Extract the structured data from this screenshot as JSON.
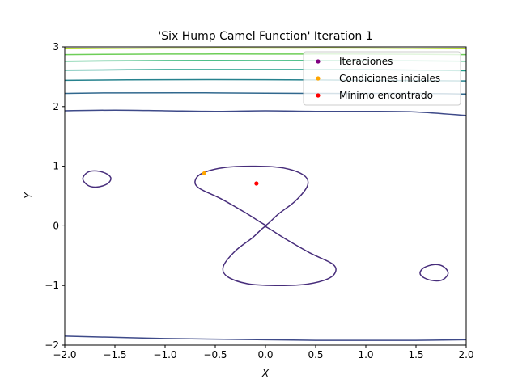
{
  "chart_data": {
    "type": "contour",
    "title": "'Six Hump Camel Function' Iteration 1",
    "xlabel": "X",
    "ylabel": "Y",
    "xlim": [
      -2,
      2
    ],
    "ylim": [
      -2,
      3
    ],
    "xticks": [
      -2.0,
      -1.5,
      -1.0,
      -0.5,
      0.0,
      0.5,
      1.0,
      1.5,
      2.0
    ],
    "yticks": [
      -2,
      -1,
      0,
      1,
      2,
      3
    ],
    "xtick_labels": [
      "−2.0",
      "−1.5",
      "−1.0",
      "−0.5",
      "0.0",
      "0.5",
      "1.0",
      "1.5",
      "2.0"
    ],
    "ytick_labels": [
      "−2",
      "−1",
      "0",
      "1",
      "2",
      "3"
    ],
    "grid": false,
    "legend_position": "top-right",
    "contour_colors": [
      "#472d7b",
      "#3e4a89",
      "#31688e",
      "#26828e",
      "#1f9e89",
      "#35b779",
      "#6ece58",
      "#b5de2b",
      "#fde725"
    ],
    "contours": {
      "figure_eight_upper": [
        [
          -0.02,
          0.03
        ],
        [
          -0.2,
          0.22
        ],
        [
          -0.45,
          0.46
        ],
        [
          -0.66,
          0.63
        ],
        [
          -0.7,
          0.76
        ],
        [
          -0.62,
          0.89
        ],
        [
          -0.4,
          0.98
        ],
        [
          -0.1,
          1.0
        ],
        [
          0.18,
          0.97
        ],
        [
          0.38,
          0.85
        ],
        [
          0.42,
          0.68
        ],
        [
          0.3,
          0.42
        ],
        [
          0.13,
          0.2
        ],
        [
          0.02,
          0.03
        ]
      ],
      "figure_eight_lower": [
        [
          -0.02,
          -0.03
        ],
        [
          -0.13,
          -0.2
        ],
        [
          -0.3,
          -0.42
        ],
        [
          -0.42,
          -0.68
        ],
        [
          -0.38,
          -0.85
        ],
        [
          -0.18,
          -0.97
        ],
        [
          0.1,
          -1.0
        ],
        [
          0.4,
          -0.98
        ],
        [
          0.62,
          -0.89
        ],
        [
          0.7,
          -0.76
        ],
        [
          0.66,
          -0.63
        ],
        [
          0.45,
          -0.46
        ],
        [
          0.2,
          -0.22
        ],
        [
          0.02,
          -0.03
        ]
      ],
      "left_lobe": [
        [
          -1.82,
          0.79
        ],
        [
          -1.77,
          0.9
        ],
        [
          -1.68,
          0.92
        ],
        [
          -1.58,
          0.87
        ],
        [
          -1.54,
          0.79
        ],
        [
          -1.58,
          0.7
        ],
        [
          -1.68,
          0.65
        ],
        [
          -1.77,
          0.68
        ]
      ],
      "right_lobe": [
        [
          1.82,
          -0.79
        ],
        [
          1.77,
          -0.9
        ],
        [
          1.68,
          -0.92
        ],
        [
          1.58,
          -0.87
        ],
        [
          1.54,
          -0.79
        ],
        [
          1.58,
          -0.7
        ],
        [
          1.68,
          -0.65
        ],
        [
          1.77,
          -0.68
        ]
      ],
      "bottom_line": [
        [
          -2.0,
          -1.85
        ],
        [
          -1.5,
          -1.87
        ],
        [
          -1.0,
          -1.89
        ],
        [
          -0.5,
          -1.9
        ],
        [
          0.0,
          -1.91
        ],
        [
          0.5,
          -1.92
        ],
        [
          1.0,
          -1.92
        ],
        [
          1.5,
          -1.92
        ],
        [
          2.0,
          -1.91
        ]
      ],
      "top_lines": [
        [
          [
            -2.0,
            1.93
          ],
          [
            -1.5,
            1.94
          ],
          [
            -1.0,
            1.93
          ],
          [
            -0.5,
            1.92
          ],
          [
            0.0,
            1.93
          ],
          [
            0.5,
            1.92
          ],
          [
            1.0,
            1.92
          ],
          [
            1.5,
            1.91
          ],
          [
            2.0,
            1.85
          ]
        ],
        [
          [
            -2.0,
            2.22
          ],
          [
            -1.5,
            2.23
          ],
          [
            -0.5,
            2.23
          ],
          [
            0.5,
            2.22
          ],
          [
            1.5,
            2.22
          ],
          [
            2.0,
            2.21
          ]
        ],
        [
          [
            -2.0,
            2.44
          ],
          [
            -1.0,
            2.45
          ],
          [
            0.0,
            2.45
          ],
          [
            1.0,
            2.44
          ],
          [
            2.0,
            2.43
          ]
        ],
        [
          [
            -2.0,
            2.61
          ],
          [
            -1.0,
            2.62
          ],
          [
            0.0,
            2.62
          ],
          [
            1.0,
            2.62
          ],
          [
            2.0,
            2.6
          ]
        ],
        [
          [
            -2.0,
            2.76
          ],
          [
            -1.0,
            2.77
          ],
          [
            0.0,
            2.77
          ],
          [
            1.0,
            2.77
          ],
          [
            2.0,
            2.76
          ]
        ],
        [
          [
            -2.0,
            2.87
          ],
          [
            -1.0,
            2.88
          ],
          [
            0.0,
            2.88
          ],
          [
            1.0,
            2.88
          ],
          [
            2.0,
            2.87
          ]
        ],
        [
          [
            -2.0,
            2.97
          ],
          [
            -1.0,
            2.98
          ],
          [
            0.0,
            2.98
          ],
          [
            1.0,
            2.98
          ],
          [
            2.0,
            2.97
          ]
        ]
      ]
    },
    "series": [
      {
        "name": "Iteraciones",
        "color": "#800080",
        "points": []
      },
      {
        "name": "Condiciones iniciales",
        "color": "#ffa500",
        "points": [
          [
            -0.61,
            0.88
          ]
        ]
      },
      {
        "name": "Mínimo encontrado",
        "color": "#ff0000",
        "points": [
          [
            -0.09,
            0.71
          ]
        ]
      }
    ]
  }
}
